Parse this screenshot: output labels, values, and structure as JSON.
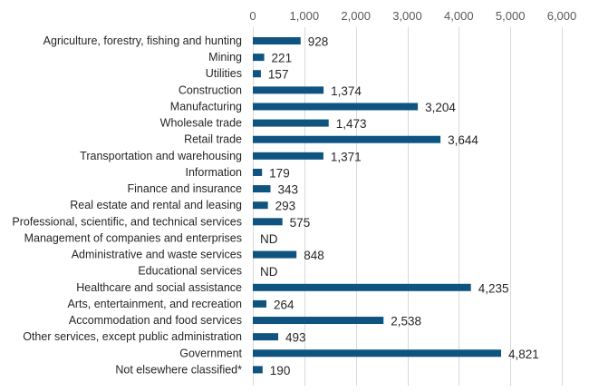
{
  "chart_data": {
    "type": "bar",
    "orientation": "horizontal",
    "title": "",
    "xlabel": "",
    "ylabel": "",
    "xlim": [
      0,
      6000
    ],
    "ticks": [
      "0",
      "1,000",
      "2,000",
      "3,000",
      "4,000",
      "5,000",
      "6,000"
    ],
    "tick_values": [
      0,
      1000,
      2000,
      3000,
      4000,
      5000,
      6000
    ],
    "grid": true,
    "legend": "none",
    "bar_color": "#0f5480",
    "categories": [
      "Agriculture, forestry, fishing and hunting",
      "Mining",
      "Utilities",
      "Construction",
      "Manufacturing",
      "Wholesale trade",
      "Retail trade",
      "Transportation and warehousing",
      "Information",
      "Finance and insurance",
      "Real estate and rental and leasing",
      "Professional, scientific, and technical services",
      "Management of companies and enterprises",
      "Administrative and waste services",
      "Educational services",
      "Healthcare and social assistance",
      "Arts, entertainment, and recreation",
      "Accommodation and food services",
      "Other services, except public administration",
      "Government",
      "Not elsewhere classified*"
    ],
    "values": [
      928,
      221,
      157,
      1374,
      3204,
      1473,
      3644,
      1371,
      179,
      343,
      293,
      575,
      null,
      848,
      null,
      4235,
      264,
      2538,
      493,
      4821,
      190
    ],
    "labels": [
      "928",
      "221",
      "157",
      "1,374",
      "3,204",
      "1,473",
      "3,644",
      "1,371",
      "179",
      "343",
      "293",
      "575",
      "ND",
      "848",
      "ND",
      "4,235",
      "264",
      "2,538",
      "493",
      "4,821",
      "190"
    ]
  }
}
